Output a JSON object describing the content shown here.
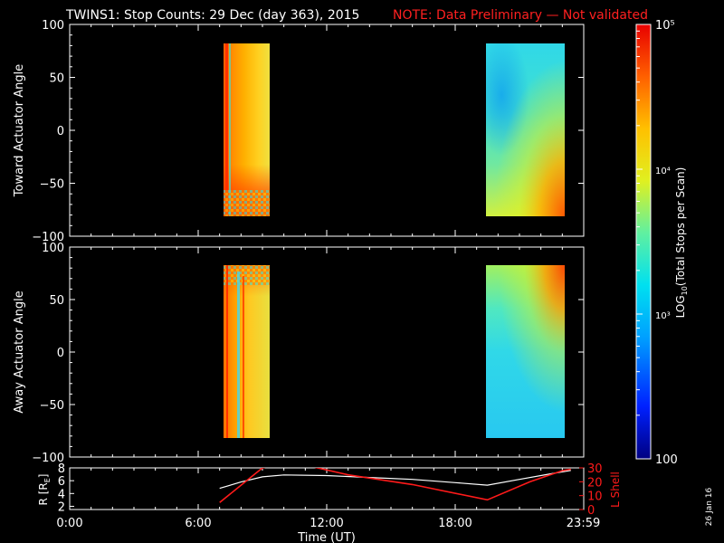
{
  "title": "TWINS1: Stop Counts: 29 Dec (day 363), 2015",
  "note": "NOTE: Data Preliminary — Not validated",
  "date_stamp": "26 Jan 16",
  "colors": {
    "background": "#000000",
    "axes": "#ffffff",
    "note": "#ff2020",
    "lshell": "#ff1a1a",
    "radius": "#ffffff"
  },
  "colorbar": {
    "label": "LOG10(Total Stops per Scan)",
    "label_base": "LOG",
    "label_sub": "10",
    "label_rest": "(Total Stops per Scan)",
    "ticks": [
      {
        "label": "100",
        "value": 100
      },
      {
        "label": "10³",
        "value": 1000
      },
      {
        "label": "10⁴",
        "value": 10000
      },
      {
        "label": "10⁵",
        "value": 100000
      }
    ],
    "range": [
      100,
      100000
    ],
    "scale": "log"
  },
  "chart_data": [
    {
      "type": "heatmap",
      "panel": "top",
      "ylabel": "Toward Actuator Angle",
      "ylim": [
        -100,
        100
      ],
      "yticks": [
        "100",
        "50",
        "0",
        "−50",
        "−100"
      ],
      "ytick_values": [
        100,
        50,
        0,
        -50,
        -100
      ],
      "xlim_hours": [
        0,
        24
      ],
      "blocks": [
        {
          "t_start": "07:10",
          "t_end": "09:10",
          "angle_min": -88,
          "angle_max": 90,
          "dominant_level": "high (~3×10⁴–1×10⁵)"
        },
        {
          "t_start": "19:20",
          "t_end": "23:10",
          "angle_min": -88,
          "angle_max": 90,
          "dominant_level": "medium (~2×10³–6×10³), rising near −90"
        }
      ]
    },
    {
      "type": "heatmap",
      "panel": "middle",
      "ylabel": "Away Actuator Angle",
      "ylim": [
        -100,
        100
      ],
      "yticks": [
        "100",
        "50",
        "0",
        "−50",
        "−100"
      ],
      "ytick_values": [
        100,
        50,
        0,
        -50,
        -100
      ],
      "xlim_hours": [
        0,
        24
      ],
      "blocks": [
        {
          "t_start": "07:10",
          "t_end": "09:10",
          "angle_min": -88,
          "angle_max": 90,
          "dominant_level": "high (~1×10⁴–5×10⁴)"
        },
        {
          "t_start": "19:20",
          "t_end": "23:10",
          "angle_min": -88,
          "angle_max": 90,
          "dominant_level": "medium (~2×10³–4×10³), rising near +90"
        }
      ]
    },
    {
      "type": "line",
      "panel": "bottom",
      "ylabel_left": "R [RE]",
      "ylabel_left_base": "R [R",
      "ylabel_left_sub": "E",
      "ylabel_left_end": "]",
      "ylabel_right": "L Shell",
      "ylim_left": [
        1.5,
        8
      ],
      "yticks_left": [
        "8",
        "6",
        "4",
        "2"
      ],
      "ytick_values_left": [
        8,
        6,
        4,
        2
      ],
      "ylim_right": [
        0,
        30
      ],
      "yticks_right": [
        "30",
        "20",
        "10",
        "0"
      ],
      "ytick_values_right": [
        30,
        20,
        10,
        0
      ],
      "xlabel": "Time (UT)",
      "xticks": [
        "0:00",
        "6:00",
        "12:00",
        "18:00",
        "23:59"
      ],
      "xtick_values": [
        0,
        6,
        12,
        18,
        23.98
      ],
      "series": [
        {
          "axis": "left",
          "color": "#ffffff",
          "x": [
            7.0,
            8.0,
            9.0,
            10.0,
            12.0,
            14.0,
            16.0,
            18.0,
            19.5,
            21.0,
            22.5,
            23.4
          ],
          "y": [
            4.8,
            5.8,
            6.6,
            6.9,
            6.8,
            6.5,
            6.2,
            5.7,
            5.3,
            6.2,
            7.1,
            7.6
          ]
        },
        {
          "axis": "right",
          "color": "#ff1a1a",
          "x": [
            7.0,
            9.0,
            9.8,
            11.0,
            13.0,
            16.0,
            19.5,
            21.5,
            23.0,
            23.4
          ],
          "y": [
            5,
            30,
            33,
            32,
            25,
            18,
            7,
            20,
            28,
            29
          ]
        }
      ]
    }
  ]
}
